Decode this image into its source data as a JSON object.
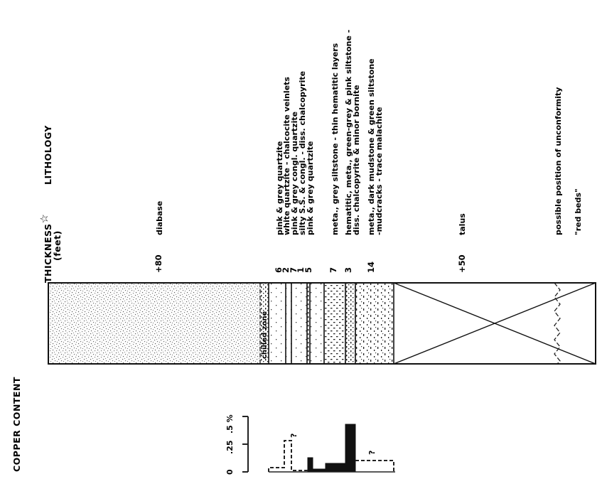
{
  "headers": {
    "copper": "COPPER CONTENT",
    "thickness": "THICKNESS",
    "thickness_star": "☆",
    "thickness_unit": "(feet)",
    "lithology": "LITHOLOGY"
  },
  "chilled_zone_label": "chilled zone",
  "copper_axis": {
    "ticks": [
      "0",
      ".25",
      ".5 %"
    ]
  },
  "uncertain_mark_upper": "?",
  "uncertain_mark_lower": "?",
  "layers": [
    {
      "id": "diabase",
      "thickness": "+80",
      "lithology": [
        "diabase"
      ]
    },
    {
      "id": "pink-grey-quartzite-1",
      "thickness": "6",
      "lithology": [
        "pink & grey quartzite"
      ]
    },
    {
      "id": "white-quartzite",
      "thickness": "2",
      "lithology": [
        "white quartzite - chalcocite veinlets"
      ]
    },
    {
      "id": "pink-grey-congl",
      "thickness": "7",
      "lithology": [
        "pink & grey congl. quartzite"
      ]
    },
    {
      "id": "silty-ss",
      "thickness": "1",
      "lithology": [
        "silty S.S. & congl. - diss. chalcopyrite"
      ]
    },
    {
      "id": "pink-grey-quartzite-2",
      "thickness": "5",
      "lithology": [
        "pink & grey quartzite"
      ]
    },
    {
      "id": "meta-grey-siltstone",
      "thickness": "7",
      "lithology": [
        "meta., grey siltstone - thin hematitic layers"
      ]
    },
    {
      "id": "hematitic",
      "thickness": "3",
      "lithology": [
        "hematitic, meta., green-grey & pink siltstone -",
        "diss. chalcopyrite & minor bornite"
      ]
    },
    {
      "id": "meta-dark-mudstone",
      "thickness": "14",
      "lithology": [
        "meta., dark mudstone & green siltstone",
        "-mudcracks - trace malachite"
      ]
    },
    {
      "id": "talus",
      "thickness": "+50",
      "lithology": [
        "talus"
      ]
    }
  ],
  "unconformity": {
    "lines": [
      "possible position of unconformity",
      "\"red beds\""
    ]
  }
}
